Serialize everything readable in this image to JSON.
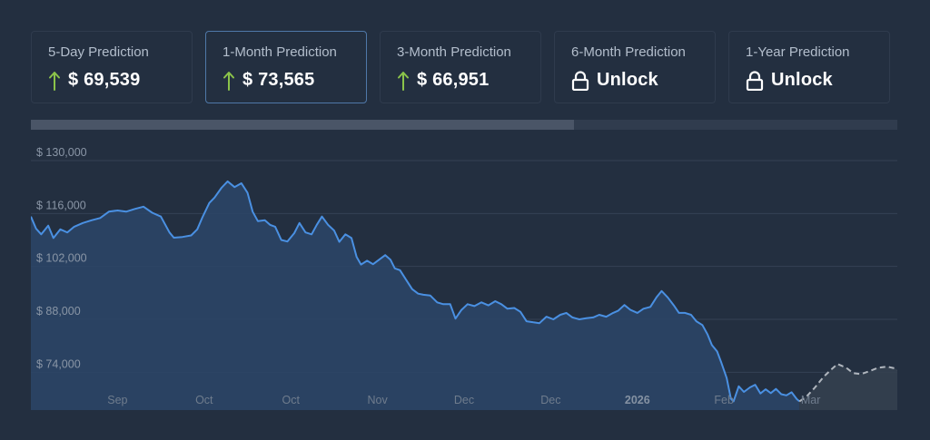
{
  "predictions": [
    {
      "label": "5-Day Prediction",
      "value": "$ 69,539",
      "state": "up",
      "active": false
    },
    {
      "label": "1-Month Prediction",
      "value": "$ 73,565",
      "state": "up",
      "active": true
    },
    {
      "label": "3-Month Prediction",
      "value": "$ 66,951",
      "state": "up",
      "active": false
    },
    {
      "label": "6-Month Prediction",
      "value": "Unlock",
      "state": "locked",
      "active": false
    },
    {
      "label": "1-Year Prediction",
      "value": "Unlock",
      "state": "locked",
      "active": false
    }
  ],
  "progress": 0.627,
  "colors": {
    "background": "#232f40",
    "line": "#4a90e2",
    "area": "#2b4566",
    "forecast_line": "#b0b6be",
    "up_arrow": "#8bc34a",
    "gridline": "#354254"
  },
  "chart_data": {
    "type": "line",
    "title": "",
    "ylim": [
      64000,
      136000
    ],
    "yticks": [
      {
        "value": 130000,
        "label": "$ 130,000"
      },
      {
        "value": 116000,
        "label": "$ 116,000"
      },
      {
        "value": 102000,
        "label": "$ 102,000"
      },
      {
        "value": 88000,
        "label": "$ 88,000"
      },
      {
        "value": 74000,
        "label": "$ 74,000"
      }
    ],
    "xlim": [
      0,
      100
    ],
    "xticks": [
      {
        "x": 10,
        "label": "Sep",
        "bold": false
      },
      {
        "x": 20,
        "label": "Oct",
        "bold": false
      },
      {
        "x": 30,
        "label": "Oct",
        "bold": false
      },
      {
        "x": 40,
        "label": "Nov",
        "bold": false
      },
      {
        "x": 50,
        "label": "Dec",
        "bold": false
      },
      {
        "x": 60,
        "label": "Dec",
        "bold": false
      },
      {
        "x": 70,
        "label": "2026",
        "bold": true
      },
      {
        "x": 80,
        "label": "Feb",
        "bold": false
      },
      {
        "x": 90,
        "label": "Mar",
        "bold": false
      }
    ],
    "series": [
      {
        "style": "historical",
        "points": [
          [
            0,
            115200
          ],
          [
            0.6,
            112000
          ],
          [
            1.2,
            110500
          ],
          [
            2,
            112800
          ],
          [
            2.6,
            109500
          ],
          [
            3.4,
            111800
          ],
          [
            4.2,
            111000
          ],
          [
            5,
            112500
          ],
          [
            6,
            113500
          ],
          [
            7,
            114200
          ],
          [
            8,
            114800
          ],
          [
            9,
            116500
          ],
          [
            10,
            116800
          ],
          [
            11,
            116500
          ],
          [
            12,
            117200
          ],
          [
            13,
            117800
          ],
          [
            14,
            116200
          ],
          [
            15,
            115200
          ],
          [
            16,
            111000
          ],
          [
            16.5,
            109600
          ],
          [
            17.5,
            109800
          ],
          [
            18.5,
            110200
          ],
          [
            19.2,
            111800
          ],
          [
            19.8,
            115000
          ],
          [
            20.6,
            118800
          ],
          [
            21.2,
            120200
          ],
          [
            22,
            122800
          ],
          [
            22.7,
            124500
          ],
          [
            23.5,
            123000
          ],
          [
            24.3,
            124000
          ],
          [
            25,
            121500
          ],
          [
            25.6,
            116500
          ],
          [
            26.2,
            114000
          ],
          [
            27,
            114200
          ],
          [
            27.6,
            113000
          ],
          [
            28.2,
            112500
          ],
          [
            28.9,
            109000
          ],
          [
            29.6,
            108600
          ],
          [
            30.4,
            110800
          ],
          [
            31,
            113500
          ],
          [
            31.7,
            111000
          ],
          [
            32.4,
            110500
          ],
          [
            33,
            113000
          ],
          [
            33.6,
            115200
          ],
          [
            34.3,
            113000
          ],
          [
            35,
            111500
          ],
          [
            35.6,
            108500
          ],
          [
            36.3,
            110500
          ],
          [
            37,
            109500
          ],
          [
            37.6,
            104500
          ],
          [
            38.1,
            102500
          ],
          [
            38.8,
            103500
          ],
          [
            39.5,
            102600
          ],
          [
            40.2,
            103800
          ],
          [
            40.9,
            105000
          ],
          [
            41.5,
            103800
          ],
          [
            42,
            101500
          ],
          [
            42.6,
            101000
          ],
          [
            43.3,
            98500
          ],
          [
            44,
            96000
          ],
          [
            44.7,
            94800
          ],
          [
            45.3,
            94500
          ],
          [
            46.1,
            94300
          ],
          [
            46.9,
            92500
          ],
          [
            47.6,
            92000
          ],
          [
            48.4,
            92000
          ],
          [
            49,
            88200
          ],
          [
            49.7,
            90500
          ],
          [
            50.4,
            92000
          ],
          [
            51.2,
            91500
          ],
          [
            52,
            92500
          ],
          [
            52.8,
            91700
          ],
          [
            53.6,
            92800
          ],
          [
            54.3,
            92000
          ],
          [
            55,
            90800
          ],
          [
            55.8,
            91000
          ],
          [
            56.5,
            90000
          ],
          [
            57.2,
            87500
          ],
          [
            58,
            87200
          ],
          [
            58.7,
            87000
          ],
          [
            59.5,
            88700
          ],
          [
            60.3,
            88000
          ],
          [
            61.1,
            89200
          ],
          [
            61.8,
            89700
          ],
          [
            62.5,
            88500
          ],
          [
            63.3,
            88000
          ],
          [
            64.1,
            88300
          ],
          [
            64.9,
            88500
          ],
          [
            65.6,
            89200
          ],
          [
            66.4,
            88700
          ],
          [
            67.2,
            89700
          ],
          [
            67.8,
            90300
          ],
          [
            68.5,
            91800
          ],
          [
            69.2,
            90500
          ],
          [
            70,
            89700
          ],
          [
            70.7,
            90800
          ],
          [
            71.5,
            91300
          ],
          [
            72.2,
            93800
          ],
          [
            72.8,
            95500
          ],
          [
            73.5,
            93800
          ],
          [
            74.2,
            91700
          ],
          [
            74.8,
            89700
          ],
          [
            75.5,
            89700
          ],
          [
            76.2,
            89200
          ],
          [
            76.8,
            87500
          ],
          [
            77.5,
            86500
          ],
          [
            78.1,
            84000
          ],
          [
            78.6,
            81200
          ],
          [
            79.2,
            79500
          ],
          [
            79.7,
            76500
          ],
          [
            80.3,
            72500
          ],
          [
            80.8,
            67000
          ],
          [
            81.1,
            66300
          ],
          [
            81.7,
            70300
          ],
          [
            82.3,
            68800
          ],
          [
            83,
            70000
          ],
          [
            83.6,
            70700
          ],
          [
            84.2,
            68400
          ],
          [
            84.8,
            69500
          ],
          [
            85.4,
            68500
          ],
          [
            86,
            69600
          ],
          [
            86.6,
            68200
          ],
          [
            87.2,
            67900
          ],
          [
            87.8,
            68700
          ],
          [
            88.4,
            66900
          ],
          [
            88.7,
            66300
          ]
        ]
      },
      {
        "style": "forecast",
        "points": [
          [
            88.7,
            66300
          ],
          [
            89.5,
            67500
          ],
          [
            90.5,
            70000
          ],
          [
            91.5,
            72800
          ],
          [
            92.5,
            75000
          ],
          [
            93.1,
            76200
          ],
          [
            94.1,
            75200
          ],
          [
            94.9,
            73800
          ],
          [
            95.8,
            73500
          ],
          [
            96.8,
            74300
          ],
          [
            97.8,
            75200
          ],
          [
            98.8,
            75500
          ],
          [
            99.8,
            75000
          ],
          [
            100,
            74600
          ]
        ]
      }
    ]
  }
}
